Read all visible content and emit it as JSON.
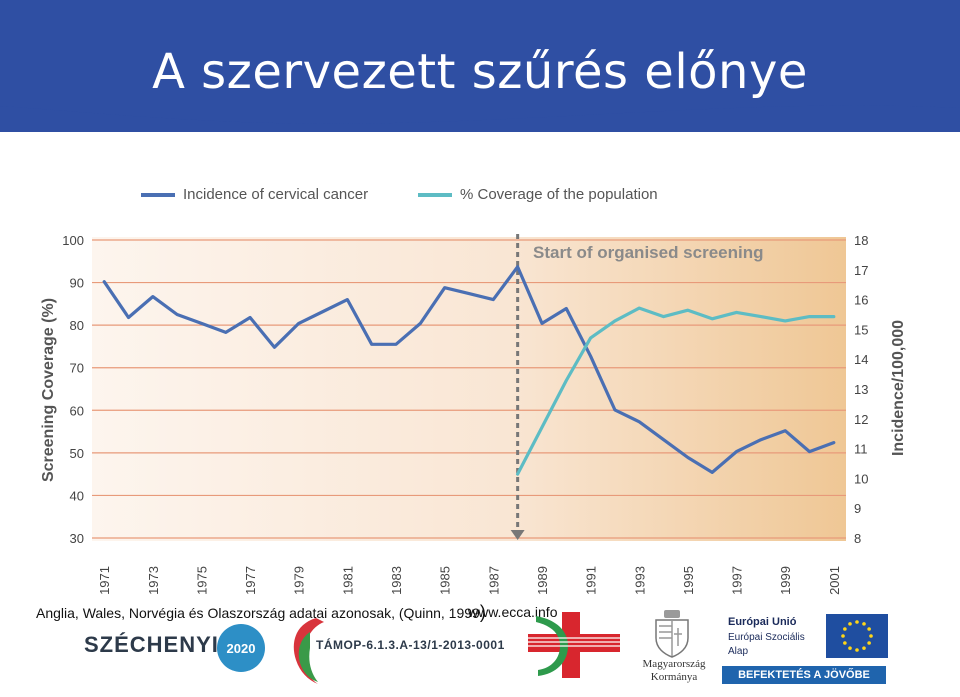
{
  "slide": {
    "title": "A szervezett szűrés előnye",
    "caption": "Anglia, Wales, Norvégia és Olaszország  adatai azonosak, (Quinn, 1999",
    "caption_paren": ")",
    "website": "www.ecca.info"
  },
  "footer": {
    "szechenyi": "SZÉCHENYI",
    "year_badge": "2020",
    "tamop": "TÁMOP-6.1.3.A-13/1-2013-0001",
    "hungary_line1": "Magyarország",
    "hungary_line2": "Kormánya",
    "eu_line1": "Európai Unió",
    "eu_line2": "Európai Szociális",
    "eu_line3": "Alap",
    "eu_banner": "BEFEKTETÉS A JÖVŐBE"
  },
  "colors": {
    "header": "#2f4fa3",
    "incidence": "#4a6fb3",
    "coverage": "#5dbcc4",
    "grid": "#e89a7a",
    "marker": "#777777"
  },
  "chart_data": {
    "type": "line",
    "annotation": "Start of organised screening",
    "annotation_x": 1988,
    "ylabel": "Screening Coverage (%)",
    "y2label": "Incidence/100,000",
    "ylim": [
      30,
      100
    ],
    "y2lim": [
      8,
      18
    ],
    "xlim": [
      1970.5,
      2001.5
    ],
    "x_ticks": [
      "1971",
      "1973",
      "1975",
      "1977",
      "1979",
      "1981",
      "1983",
      "1985",
      "1987",
      "1989",
      "1991",
      "1993",
      "1995",
      "1997",
      "1999",
      "2001"
    ],
    "y_ticks": [
      "100",
      "90",
      "80",
      "70",
      "60",
      "50",
      "40",
      "30"
    ],
    "y2_ticks": [
      "18",
      "17",
      "16",
      "15",
      "14",
      "13",
      "12",
      "11",
      "10",
      "9",
      "8"
    ],
    "grid": "horizontal",
    "legend_position": "top",
    "series": [
      {
        "name": "Incidence of cervical cancer",
        "axis": "right",
        "x": [
          1971,
          1972,
          1973,
          1974,
          1975,
          1976,
          1977,
          1978,
          1979,
          1980,
          1981,
          1982,
          1983,
          1984,
          1985,
          1986,
          1987,
          1988,
          1989,
          1990,
          1991,
          1992,
          1993,
          1994,
          1995,
          1996,
          1997,
          1998,
          1999,
          2000,
          2001
        ],
        "values": [
          16.6,
          15.4,
          16.1,
          15.5,
          15.2,
          14.9,
          15.4,
          14.4,
          15.2,
          15.6,
          16.0,
          14.5,
          14.5,
          15.2,
          16.4,
          16.2,
          16.0,
          17.1,
          15.2,
          15.7,
          14.1,
          12.3,
          11.9,
          11.3,
          10.7,
          10.2,
          10.9,
          11.3,
          11.6,
          10.9,
          11.2
        ]
      },
      {
        "name": "% Coverage of the population",
        "axis": "left",
        "x": [
          1988,
          1989,
          1990,
          1991,
          1992,
          1993,
          1994,
          1995,
          1996,
          1997,
          1998,
          1999,
          2000,
          2001
        ],
        "values": [
          45,
          56,
          67,
          77,
          81,
          84,
          82,
          83.5,
          81.5,
          83,
          82,
          81,
          82,
          82
        ]
      }
    ]
  }
}
